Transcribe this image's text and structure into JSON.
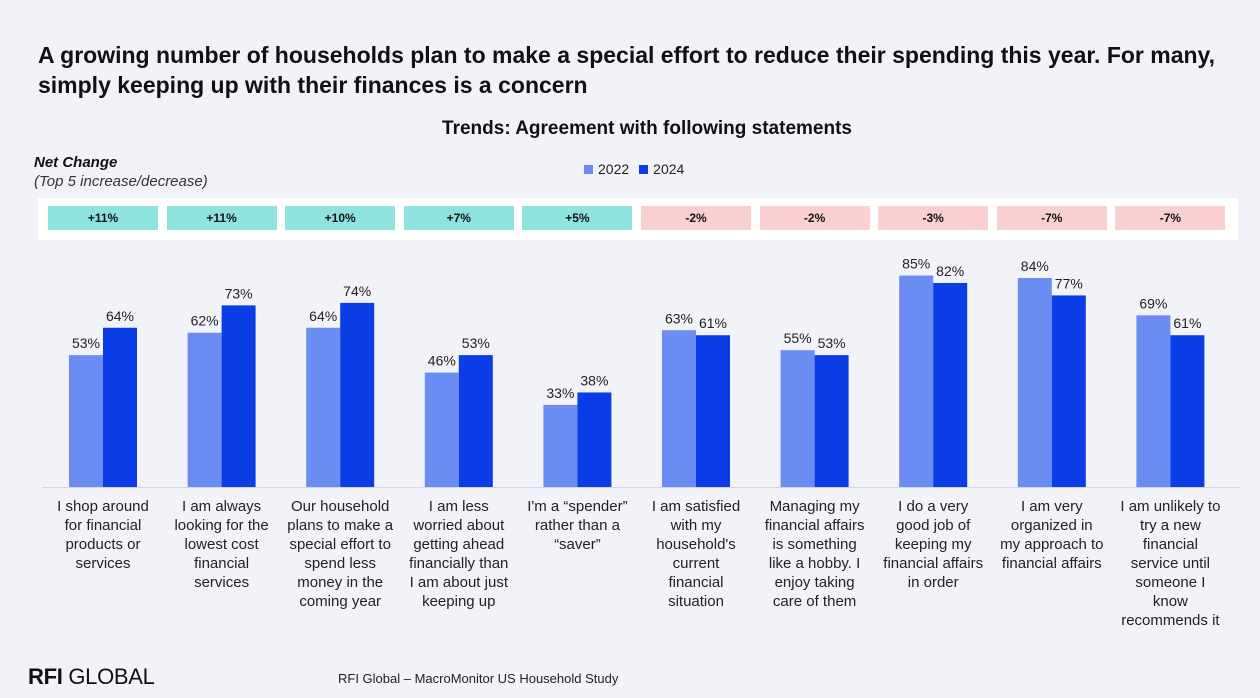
{
  "title": "A growing number of households plan to make a special effort to reduce their spending this year. For many, simply keeping up with their finances is a concern",
  "net_change": {
    "label": "Net Change",
    "sublabel": "(Top 5 increase/decrease)"
  },
  "colors": {
    "series_2022": "#6b8cf2",
    "series_2024": "#0a3de6",
    "increase": "#8ee3de",
    "decrease": "#f9cfcf"
  },
  "footer": {
    "logo_bold": "RFI",
    "logo_rest": " GLOBAL",
    "source": "RFI Global – MacroMonitor US Household Study"
  },
  "chart_data": {
    "type": "bar",
    "title": "Trends: Agreement with following statements",
    "ylim": [
      0,
      100
    ],
    "grid": false,
    "legend_position": "top-center",
    "categories": [
      "I shop around for financial products or services",
      "I am always looking for the lowest cost financial services",
      "Our household plans to make a special effort to spend less money in the coming year",
      "I am less worried about getting ahead financially than I am about just keeping up",
      "I'm a “spender” rather than a “saver”",
      "I am satisfied with my household's current financial situation",
      "Managing my financial affairs is something like a hobby. I enjoy taking care of them",
      "I do a very good job of keeping my financial affairs in order",
      "I am very organized in my approach to financial affairs",
      "I am unlikely to try a new financial service until someone I know recommends it"
    ],
    "category_lines": [
      [
        "I shop around",
        "for financial",
        "products or",
        "services"
      ],
      [
        "I am always",
        "looking for the",
        "lowest cost",
        "financial",
        "services"
      ],
      [
        "Our household",
        "plans to make a",
        "special effort to",
        "spend less",
        "money in the",
        "coming year"
      ],
      [
        "I am less",
        "worried about",
        "getting ahead",
        "financially than",
        "I am about just",
        "keeping up"
      ],
      [
        "I'm a “spender”",
        "rather than a",
        "“saver”"
      ],
      [
        "I am satisfied",
        "with my",
        "household's",
        "current",
        "financial",
        "situation"
      ],
      [
        "Managing my",
        "financial affairs",
        "is something",
        "like a hobby. I",
        "enjoy taking",
        "care of them"
      ],
      [
        "I do a very",
        "good job of",
        "keeping my",
        "financial affairs",
        "in order"
      ],
      [
        "I am very",
        "organized in",
        "my approach to",
        "financial affairs"
      ],
      [
        "I am unlikely to",
        "try a new",
        "financial",
        "service until",
        "someone I",
        "know",
        "recommends it"
      ]
    ],
    "series": [
      {
        "name": "2022",
        "values": [
          53,
          62,
          64,
          46,
          33,
          63,
          55,
          85,
          84,
          69
        ],
        "labels": [
          "53%",
          "62%",
          "64%",
          "46%",
          "33%",
          "63%",
          "55%",
          "85%",
          "84%",
          "69%"
        ]
      },
      {
        "name": "2024",
        "values": [
          64,
          73,
          74,
          53,
          38,
          61,
          53,
          82,
          77,
          61
        ],
        "labels": [
          "64%",
          "73%",
          "74%",
          "53%",
          "38%",
          "61%",
          "53%",
          "82%",
          "77%",
          "61%"
        ]
      }
    ],
    "net_change": [
      "+11%",
      "+11%",
      "+10%",
      "+7%",
      "+5%",
      "-2%",
      "-2%",
      "-3%",
      "-7%",
      "-7%"
    ]
  }
}
